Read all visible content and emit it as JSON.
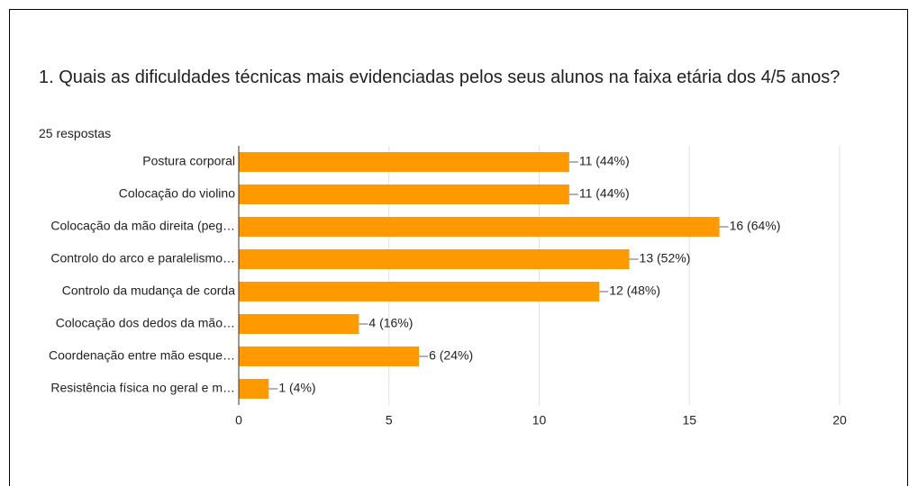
{
  "chart_data": {
    "type": "bar",
    "orientation": "horizontal",
    "title": "1. Quais as dificuldades técnicas mais evidenciadas pelos seus alunos na faixa etária dos 4/5 anos?",
    "subtitle": "25 respostas",
    "categories": [
      "Postura corporal",
      "Colocação do violino",
      "Colocação da mão direita (peg…",
      "Controlo do arco e paralelismo…",
      "Controlo da mudança de corda",
      "Colocação dos dedos da mão…",
      "Coordenação entre mão esque…",
      "Resistência física no geral e m…"
    ],
    "values": [
      11,
      11,
      16,
      13,
      12,
      4,
      6,
      1
    ],
    "value_labels": [
      "11 (44%)",
      "11 (44%)",
      "16 (64%)",
      "13 (52%)",
      "12 (48%)",
      "4 (16%)",
      "6 (24%)",
      "1 (4%)"
    ],
    "color": "#ff9900",
    "xlim": [
      0,
      20
    ],
    "xticks": [
      0,
      5,
      10,
      15,
      20
    ],
    "grid": true
  }
}
